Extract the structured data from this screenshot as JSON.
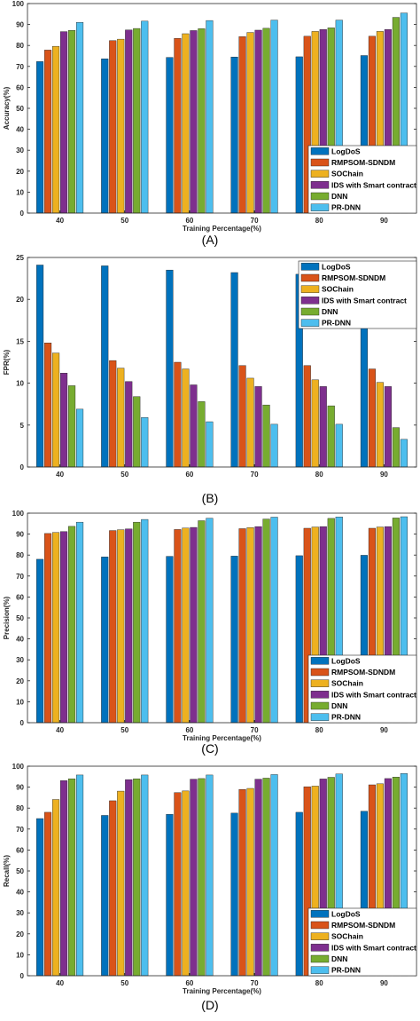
{
  "chart_data": [
    {
      "type": "bar",
      "caption": "(A)",
      "categories": [
        "40",
        "50",
        "60",
        "70",
        "80",
        "90"
      ],
      "xlabel": "Training Percentage(%)",
      "ylabel": "Accuracy(%)",
      "ylim": [
        0,
        100
      ],
      "yticks": [
        0,
        10,
        20,
        30,
        40,
        50,
        60,
        70,
        80,
        90,
        100
      ],
      "legend_position": "bottom-right",
      "series": [
        {
          "name": "LogDoS",
          "color": "#0072BD",
          "values": [
            72.3,
            73.6,
            74.3,
            74.5,
            74.6,
            75.2
          ]
        },
        {
          "name": "RMPSOM-SDNDM",
          "color": "#D95319",
          "values": [
            77.8,
            82.3,
            83.4,
            84.2,
            84.4,
            84.4
          ]
        },
        {
          "name": "SOChain",
          "color": "#EDB120",
          "values": [
            79.6,
            83.0,
            85.6,
            86.2,
            86.7,
            86.7
          ]
        },
        {
          "name": "IDS with Smart contract",
          "color": "#7E2F8E",
          "values": [
            86.6,
            87.4,
            87.1,
            87.3,
            87.6,
            87.6
          ]
        },
        {
          "name": "DNN",
          "color": "#77AC30",
          "values": [
            87.2,
            88.1,
            88.0,
            88.2,
            88.4,
            93.4
          ]
        },
        {
          "name": "PR-DNN",
          "color": "#4DBEEE",
          "values": [
            91.0,
            91.6,
            91.9,
            92.1,
            92.1,
            95.5
          ]
        }
      ]
    },
    {
      "type": "bar",
      "caption": "(B)",
      "categories": [
        "40",
        "50",
        "60",
        "70",
        "80",
        "90"
      ],
      "xlabel": "",
      "ylabel": "FPR(%)",
      "ylim": [
        0,
        25
      ],
      "yticks": [
        0,
        5,
        10,
        15,
        20,
        25
      ],
      "legend_position": "top-right",
      "series": [
        {
          "name": "LogDoS",
          "color": "#0072BD",
          "values": [
            24.1,
            24.0,
            23.5,
            23.2,
            23.0,
            22.5
          ]
        },
        {
          "name": "RMPSOM-SDNDM",
          "color": "#D95319",
          "values": [
            14.8,
            12.7,
            12.5,
            12.1,
            12.1,
            11.7
          ]
        },
        {
          "name": "SOChain",
          "color": "#EDB120",
          "values": [
            13.6,
            11.8,
            11.7,
            10.6,
            10.4,
            10.1
          ]
        },
        {
          "name": "IDS with Smart contract",
          "color": "#7E2F8E",
          "values": [
            11.2,
            10.2,
            9.8,
            9.6,
            9.6,
            9.6
          ]
        },
        {
          "name": "DNN",
          "color": "#77AC30",
          "values": [
            9.7,
            8.4,
            7.8,
            7.4,
            7.3,
            4.7
          ]
        },
        {
          "name": "PR-DNN",
          "color": "#4DBEEE",
          "values": [
            6.9,
            5.9,
            5.4,
            5.1,
            5.1,
            3.3
          ]
        }
      ]
    },
    {
      "type": "bar",
      "caption": "(C)",
      "categories": [
        "40",
        "50",
        "60",
        "70",
        "80",
        "90"
      ],
      "xlabel": "Training Percentage(%)",
      "ylabel": "Precision(%)",
      "ylim": [
        0,
        100
      ],
      "yticks": [
        0,
        10,
        20,
        30,
        40,
        50,
        60,
        70,
        80,
        90,
        100
      ],
      "legend_position": "bottom-right",
      "series": [
        {
          "name": "LogDoS",
          "color": "#0072BD",
          "values": [
            78.0,
            79.1,
            79.4,
            79.5,
            79.7,
            79.9
          ]
        },
        {
          "name": "RMPSOM-SDNDM",
          "color": "#D95319",
          "values": [
            90.3,
            91.7,
            92.2,
            92.6,
            92.8,
            92.8
          ]
        },
        {
          "name": "SOChain",
          "color": "#EDB120",
          "values": [
            90.8,
            92.1,
            92.9,
            93.1,
            93.4,
            93.4
          ]
        },
        {
          "name": "IDS with Smart contract",
          "color": "#7E2F8E",
          "values": [
            91.2,
            92.5,
            93.2,
            93.6,
            93.6,
            93.6
          ]
        },
        {
          "name": "DNN",
          "color": "#77AC30",
          "values": [
            93.7,
            95.7,
            96.4,
            97.2,
            97.5,
            97.7
          ]
        },
        {
          "name": "PR-DNN",
          "color": "#4DBEEE",
          "values": [
            95.7,
            97.0,
            97.6,
            98.1,
            98.2,
            98.3
          ]
        }
      ]
    },
    {
      "type": "bar",
      "caption": "(D)",
      "categories": [
        "40",
        "50",
        "60",
        "70",
        "80",
        "90"
      ],
      "xlabel": "Training Percentage(%)",
      "ylabel": "Recall(%)",
      "ylim": [
        0,
        100
      ],
      "yticks": [
        0,
        10,
        20,
        30,
        40,
        50,
        60,
        70,
        80,
        90,
        100
      ],
      "legend_position": "bottom-right",
      "series": [
        {
          "name": "LogDoS",
          "color": "#0072BD",
          "values": [
            75.0,
            76.5,
            77.0,
            77.6,
            78.0,
            78.5
          ]
        },
        {
          "name": "RMPSOM-SDNDM",
          "color": "#D95319",
          "values": [
            78.0,
            83.5,
            87.4,
            88.9,
            90.2,
            91.1
          ]
        },
        {
          "name": "SOChain",
          "color": "#EDB120",
          "values": [
            84.1,
            88.1,
            88.2,
            89.4,
            90.5,
            91.6
          ]
        },
        {
          "name": "IDS with Smart contract",
          "color": "#7E2F8E",
          "values": [
            93.1,
            93.6,
            93.8,
            93.8,
            93.9,
            94.1
          ]
        },
        {
          "name": "DNN",
          "color": "#77AC30",
          "values": [
            94.0,
            94.0,
            94.1,
            94.3,
            94.7,
            94.8
          ]
        },
        {
          "name": "PR-DNN",
          "color": "#4DBEEE",
          "values": [
            95.8,
            95.8,
            95.8,
            96.0,
            96.3,
            96.5
          ]
        }
      ]
    }
  ]
}
